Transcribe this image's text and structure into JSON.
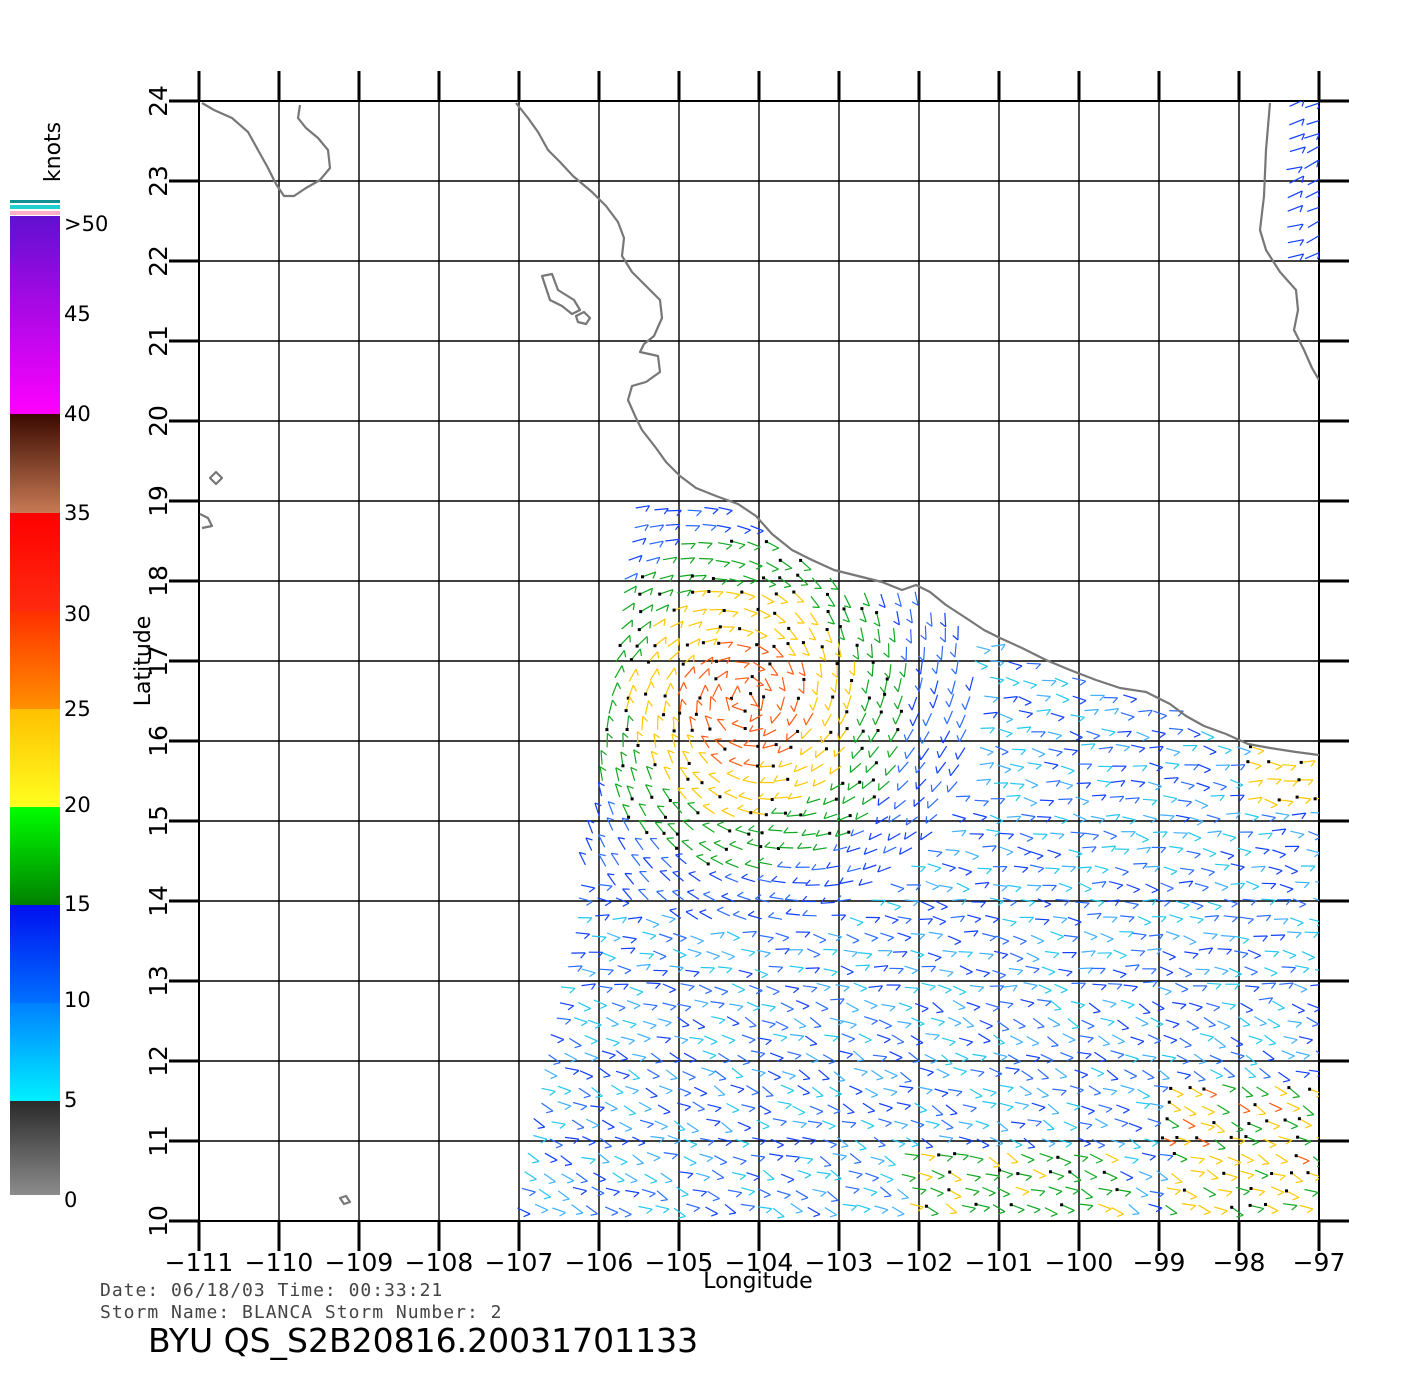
{
  "map": {
    "lon_ticks": [
      "−111",
      "−110",
      "−109",
      "−108",
      "−107",
      "−106",
      "−105",
      "−104",
      "−103",
      "−102",
      "−101",
      "−100",
      "−99",
      "−98",
      "−97"
    ],
    "lat_ticks": [
      "10",
      "11",
      "12",
      "13",
      "14",
      "15",
      "16",
      "17",
      "18",
      "19",
      "20",
      "21",
      "22",
      "23",
      "24"
    ],
    "xlabel": "Longitude",
    "ylabel": "Latitude",
    "lon_range": [
      -111,
      -97
    ],
    "lat_range": [
      10,
      24
    ],
    "grid": true,
    "coastline_color": "#777777"
  },
  "legend": {
    "unit": "knots",
    "labels": [
      "0",
      "5",
      "10",
      "15",
      "20",
      "25",
      "30",
      "35",
      "40",
      "45",
      ">50"
    ],
    "colors": {
      "0-5": "#555555",
      "5-10": "#19c8ff",
      "10-15": "#1230ff",
      "15-20": "#10b020",
      "20-25": "#ffd000",
      "25-30": "#ff6a00",
      "30-35": "#ff2000",
      "35-40": "#7a3a22",
      "40-45": "#ff00ff",
      ">50": "#6a10c8"
    }
  },
  "info": {
    "date_line": "Date: 06/18/03   Time: 00:33:21",
    "storm_line": "Storm Name: BLANCA   Storm Number: 2",
    "file_name": "BYU QS_S2B20816.20031701133"
  }
}
